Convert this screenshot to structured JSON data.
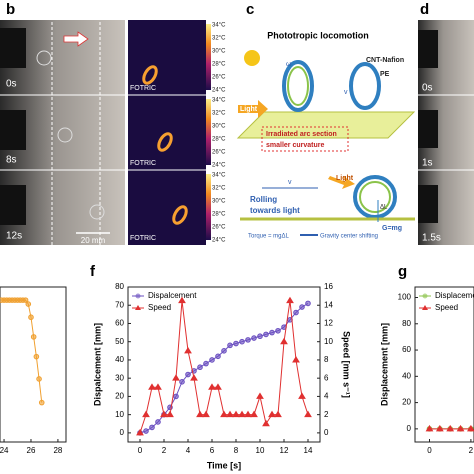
{
  "figure": {
    "b": {
      "label": "b",
      "times": [
        "0s",
        "8s",
        "12s"
      ],
      "scale": "20 mm",
      "brand": "FOTRIC",
      "colorbar": [
        "34°C",
        "32°C",
        "30°C",
        "28°C",
        "26°C",
        "24°C"
      ]
    },
    "c": {
      "label": "c",
      "title": "Phototropic locomotion",
      "material": "CNT-Nafion",
      "substrate": "PE",
      "omega": "ω",
      "velocity": "v",
      "light": "Light",
      "arc": [
        "Irradiated arc section",
        "smaller curvature"
      ],
      "rolling": [
        "Rolling",
        "towards light"
      ],
      "velocity2": "v",
      "light2": "Light",
      "delta": "ΔL",
      "gravity": "G=mg",
      "torque": "Torque = mgΔL",
      "shift": "Gravity center shifting"
    },
    "d": {
      "label": "d",
      "times": [
        "0s",
        "1s",
        "1.5s"
      ]
    }
  },
  "chart_data": [
    {
      "type": "line",
      "xlim": [
        23.7,
        28.6
      ],
      "xticks": [
        24,
        26,
        28
      ],
      "ylim": [
        -10,
        108
      ],
      "x": [
        23.8,
        24.0,
        24.2,
        24.4,
        24.6,
        24.8,
        25.0,
        25.2,
        25.4,
        25.6,
        25.8,
        26.0,
        26.2,
        26.4,
        26.6,
        26.8
      ],
      "series": [
        {
          "color": "#f0a030",
          "marker": "circle",
          "values": [
            98,
            98,
            98,
            98,
            98,
            98,
            98,
            98,
            98,
            98,
            95,
            85,
            70,
            55,
            38,
            20
          ]
        }
      ]
    },
    {
      "type": "line",
      "label": "f",
      "xlabel": "Time [s]",
      "ylabel": "Dispalcement [mm]",
      "y2label": "Speed [mm s⁻¹]",
      "xlim": [
        -1,
        15
      ],
      "xticks": [
        0,
        2,
        4,
        6,
        8,
        10,
        12,
        14
      ],
      "ylim": [
        -5,
        80
      ],
      "yticks": [
        0,
        10,
        20,
        30,
        40,
        50,
        60,
        70,
        80
      ],
      "y2lim": [
        -1,
        16
      ],
      "y2ticks": [
        0,
        2,
        4,
        6,
        8,
        10,
        12,
        14,
        16
      ],
      "legend": "upper left",
      "x": [
        0,
        0.5,
        1,
        1.5,
        2,
        2.5,
        3,
        3.5,
        4,
        4.5,
        5,
        5.5,
        6,
        6.5,
        7,
        7.5,
        8,
        8.5,
        9,
        9.5,
        10,
        10.5,
        11,
        11.5,
        12,
        12.5,
        13,
        13.5,
        14
      ],
      "series": [
        {
          "name": "Dispalcement",
          "color": "#6a4fc0",
          "marker": "circle",
          "values": [
            0,
            1,
            3,
            6,
            10,
            14,
            20,
            28,
            32,
            34,
            36,
            38,
            40,
            42,
            45,
            48,
            49,
            50,
            51,
            52,
            53,
            54,
            55,
            56,
            58,
            62,
            66,
            69,
            71
          ]
        },
        {
          "name": "Speed",
          "color": "#e03030",
          "marker": "triangle",
          "axis": "y2",
          "values": [
            0,
            2,
            5,
            5,
            2,
            2,
            6,
            14.5,
            9,
            6,
            2,
            2,
            5,
            5,
            2,
            2,
            2,
            2,
            2,
            2,
            4,
            1,
            2,
            2,
            10,
            14.5,
            8,
            4,
            2
          ]
        }
      ]
    },
    {
      "type": "line",
      "label": "g",
      "ylabel": "Displacement [mm]",
      "xlim": [
        -0.7,
        2.15
      ],
      "xticks": [
        0,
        2
      ],
      "ylim": [
        -10,
        108
      ],
      "yticks": [
        0,
        20,
        40,
        60,
        80,
        100
      ],
      "legend": "upper left",
      "x": [
        0,
        0.5,
        1,
        1.5,
        2
      ],
      "series": [
        {
          "name": "Displacement",
          "color": "#8bc34a",
          "marker": "circle",
          "values": [
            0,
            0,
            0,
            0,
            0
          ]
        },
        {
          "name": "Speed",
          "color": "#e03030",
          "marker": "triangle",
          "values": [
            0,
            0,
            0,
            0,
            0
          ]
        }
      ]
    }
  ]
}
